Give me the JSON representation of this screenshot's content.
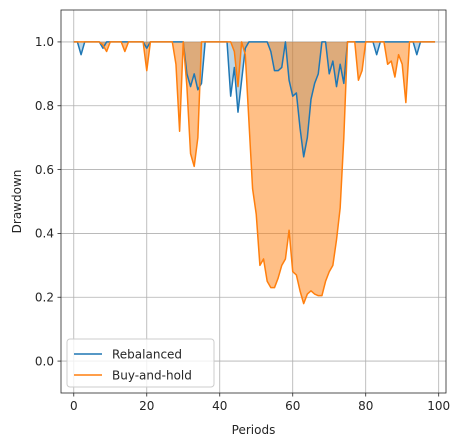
{
  "chart_data": {
    "type": "line",
    "xlabel": "Periods",
    "ylabel": "Drawdown",
    "xlim": [
      -3.5,
      102
    ],
    "ylim": [
      -0.1,
      1.1
    ],
    "xticks": [
      0,
      20,
      40,
      60,
      80,
      100
    ],
    "yticks": [
      0.0,
      0.2,
      0.4,
      0.6,
      0.8,
      1.0
    ],
    "xtick_labels": [
      "0",
      "20",
      "40",
      "60",
      "80",
      "100"
    ],
    "ytick_labels": [
      "0.0",
      "0.2",
      "0.4",
      "0.6",
      "0.8",
      "1.0"
    ],
    "grid": true,
    "legend_position": "lower-left",
    "x": [
      0,
      1,
      2,
      3,
      4,
      5,
      6,
      7,
      8,
      9,
      10,
      11,
      12,
      13,
      14,
      15,
      16,
      17,
      18,
      19,
      20,
      21,
      22,
      23,
      24,
      25,
      26,
      27,
      28,
      29,
      30,
      31,
      32,
      33,
      34,
      35,
      36,
      37,
      38,
      39,
      40,
      41,
      42,
      43,
      44,
      45,
      46,
      47,
      48,
      49,
      50,
      51,
      52,
      53,
      54,
      55,
      56,
      57,
      58,
      59,
      60,
      61,
      62,
      63,
      64,
      65,
      66,
      67,
      68,
      69,
      70,
      71,
      72,
      73,
      74,
      75,
      76,
      77,
      78,
      79,
      80,
      81,
      82,
      83,
      84,
      85,
      86,
      87,
      88,
      89,
      90,
      91,
      92,
      93,
      94,
      95,
      96,
      97,
      98,
      99
    ],
    "series": [
      {
        "name": "Rebalanced",
        "color": "#1f77b4",
        "values": [
          1.0,
          1.0,
          0.96,
          1.0,
          1.0,
          1.0,
          1.0,
          1.0,
          0.98,
          1.0,
          1.0,
          1.0,
          1.0,
          1.0,
          1.0,
          1.0,
          1.0,
          1.0,
          1.0,
          1.0,
          0.98,
          1.0,
          1.0,
          1.0,
          1.0,
          1.0,
          1.0,
          1.0,
          1.0,
          1.0,
          1.0,
          0.9,
          0.86,
          0.9,
          0.85,
          0.87,
          1.0,
          1.0,
          1.0,
          1.0,
          1.0,
          1.0,
          1.0,
          0.83,
          0.92,
          0.78,
          0.88,
          0.98,
          1.0,
          1.0,
          1.0,
          1.0,
          1.0,
          1.0,
          0.97,
          0.91,
          0.91,
          0.92,
          1.0,
          0.88,
          0.83,
          0.84,
          0.73,
          0.64,
          0.7,
          0.82,
          0.87,
          0.9,
          1.0,
          1.0,
          0.9,
          0.94,
          0.86,
          0.93,
          0.87,
          1.0,
          1.0,
          1.0,
          1.0,
          1.0,
          1.0,
          1.0,
          1.0,
          0.96,
          1.0,
          1.0,
          1.0,
          1.0,
          1.0,
          1.0,
          1.0,
          1.0,
          1.0,
          1.0,
          0.96,
          1.0,
          1.0,
          1.0,
          1.0,
          1.0
        ]
      },
      {
        "name": "Buy-and-hold",
        "color": "#ff7f0e",
        "values": [
          1.0,
          1.0,
          1.0,
          1.0,
          1.0,
          1.0,
          1.0,
          1.0,
          0.99,
          0.97,
          1.0,
          1.0,
          1.0,
          1.0,
          0.97,
          1.0,
          1.0,
          1.0,
          1.0,
          1.0,
          0.91,
          1.0,
          1.0,
          1.0,
          1.0,
          1.0,
          1.0,
          1.0,
          0.93,
          0.72,
          1.0,
          0.86,
          0.65,
          0.61,
          0.7,
          1.0,
          1.0,
          1.0,
          1.0,
          1.0,
          1.0,
          1.0,
          1.0,
          1.0,
          0.97,
          0.86,
          1.0,
          0.96,
          0.75,
          0.54,
          0.46,
          0.3,
          0.32,
          0.25,
          0.23,
          0.23,
          0.26,
          0.3,
          0.32,
          0.41,
          0.28,
          0.27,
          0.22,
          0.18,
          0.21,
          0.22,
          0.21,
          0.205,
          0.205,
          0.25,
          0.28,
          0.3,
          0.38,
          0.48,
          0.7,
          1.0,
          1.0,
          1.0,
          0.88,
          0.91,
          1.0,
          1.0,
          1.0,
          1.0,
          1.0,
          1.0,
          0.93,
          0.94,
          0.89,
          0.96,
          0.93,
          0.81,
          1.0,
          1.0,
          1.0,
          1.0,
          1.0,
          1.0,
          1.0,
          1.0
        ]
      }
    ]
  }
}
